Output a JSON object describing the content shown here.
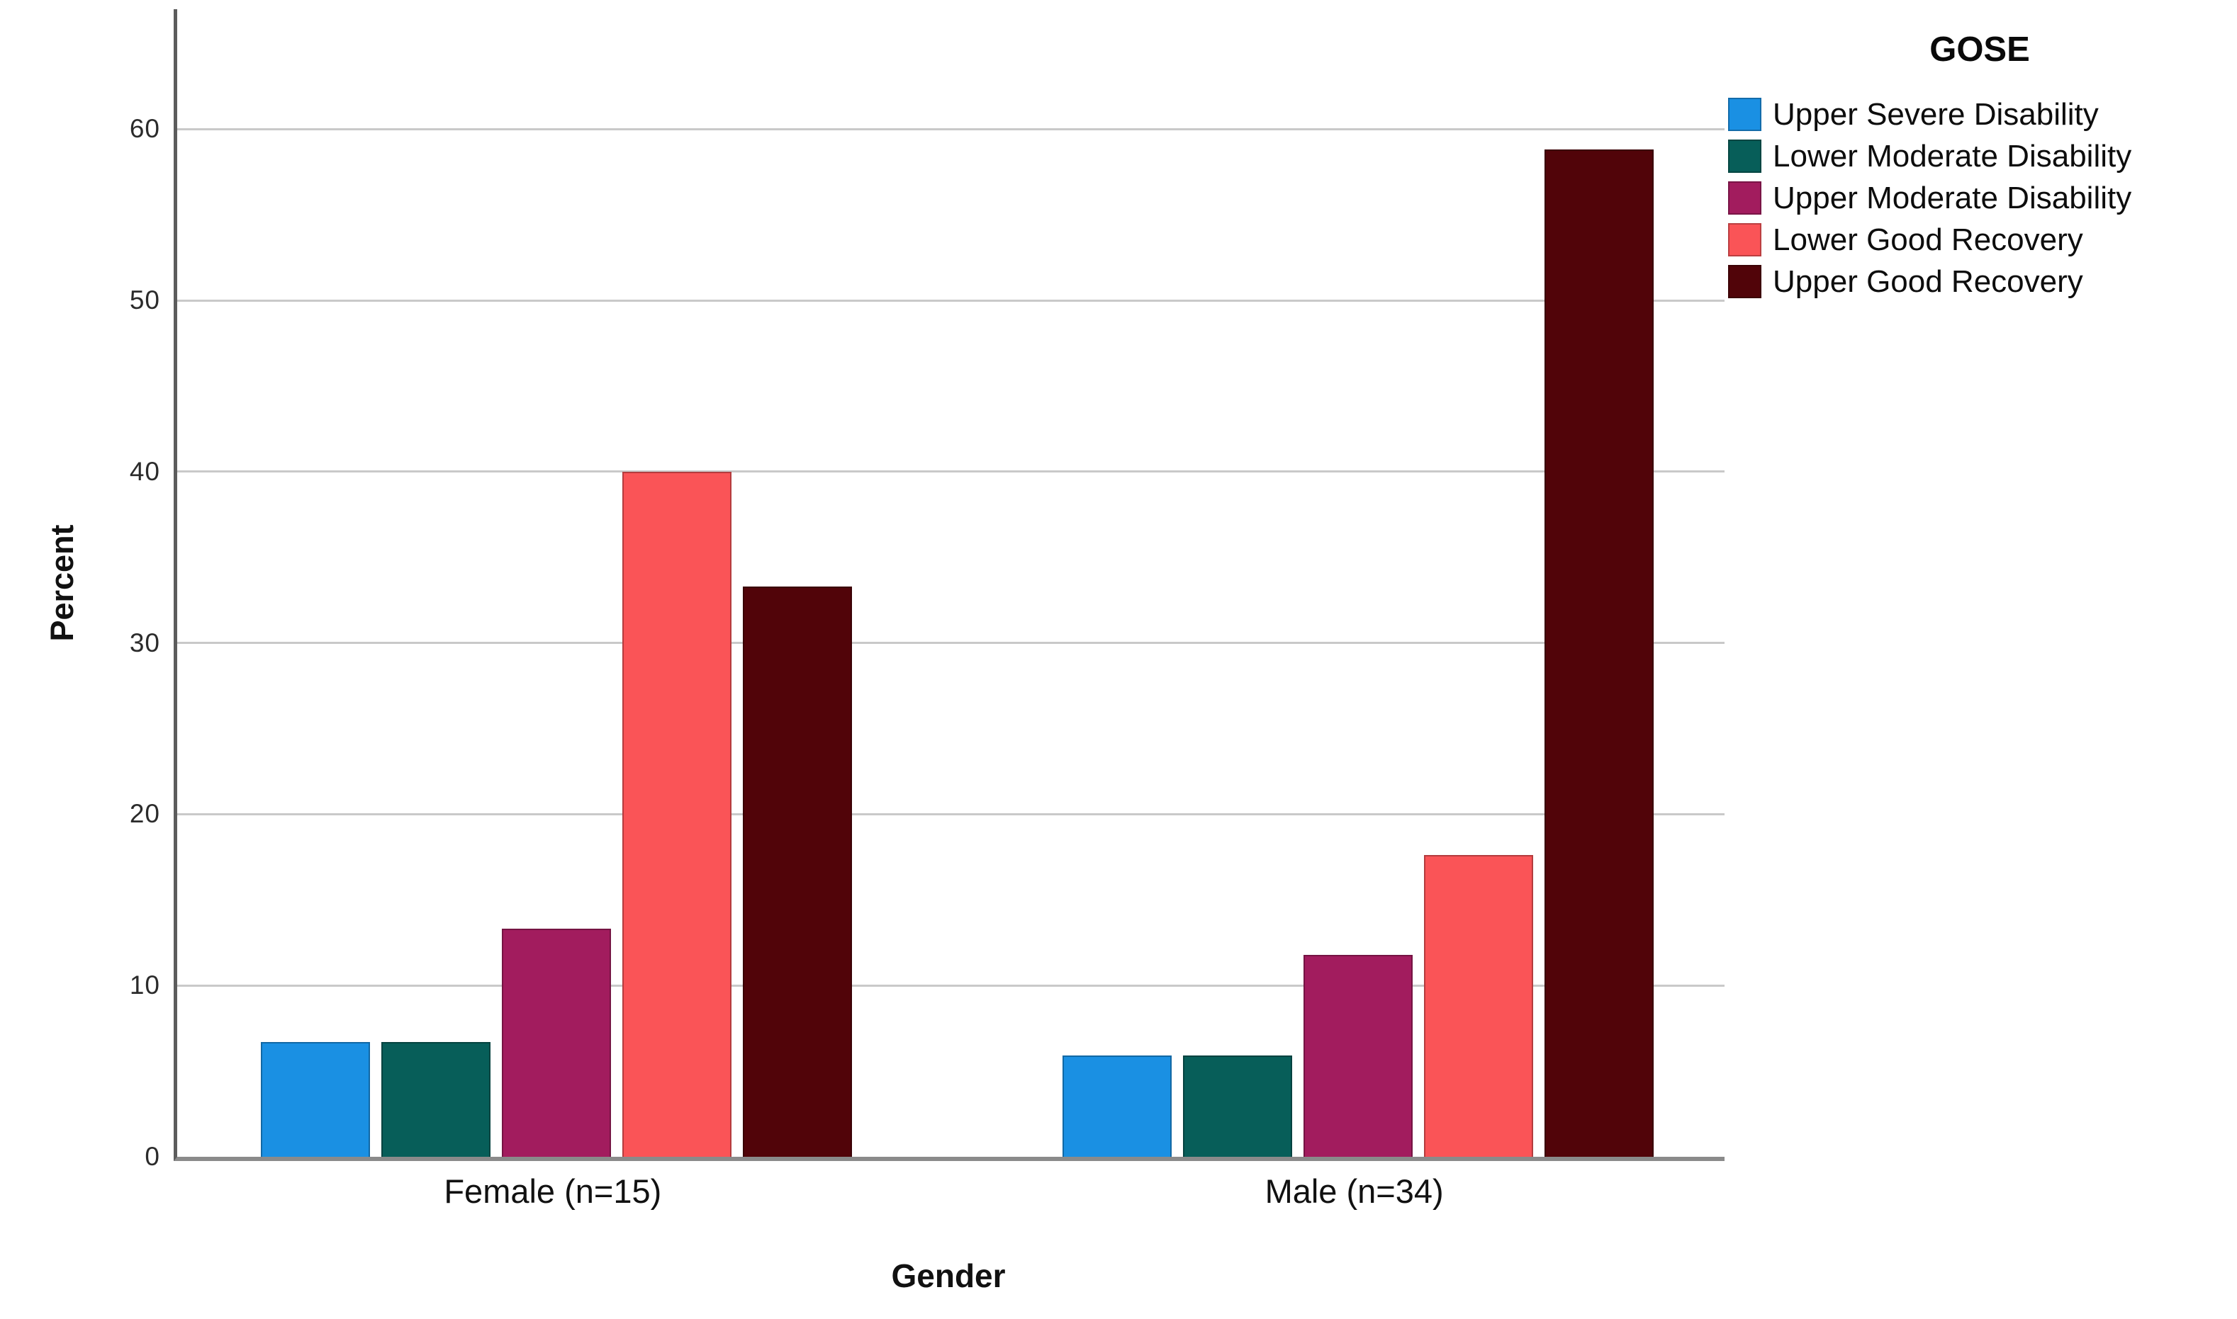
{
  "chart_data": {
    "type": "bar",
    "grouped": true,
    "title": "",
    "xlabel": "Gender",
    "ylabel": "Percent",
    "categories": [
      "Female (n=15)",
      "Male (n=34)"
    ],
    "series": [
      {
        "name": "Upper Severe Disability",
        "color": "#1a90e3",
        "values": [
          6.7,
          5.9
        ]
      },
      {
        "name": "Lower Moderate Disability",
        "color": "#075e59",
        "values": [
          6.7,
          5.9
        ]
      },
      {
        "name": "Upper Moderate Disability",
        "color": "#a21c5e",
        "values": [
          13.3,
          11.8
        ]
      },
      {
        "name": "Lower Good Recovery",
        "color": "#fa5457",
        "values": [
          40.0,
          17.6
        ]
      },
      {
        "name": "Upper Good Recovery",
        "color": "#510409",
        "values": [
          33.3,
          58.8
        ]
      }
    ],
    "legend": {
      "title": "GOSE",
      "position": "right-top"
    },
    "ylim": [
      0,
      67
    ],
    "yticks": [
      0,
      10,
      20,
      30,
      40,
      50,
      60
    ],
    "grid": "horizontal",
    "axis_colors": {
      "gridline": "#c9c9c9",
      "y_axis": "#5c5c5c",
      "x_axis": "#8a8a8a"
    }
  }
}
